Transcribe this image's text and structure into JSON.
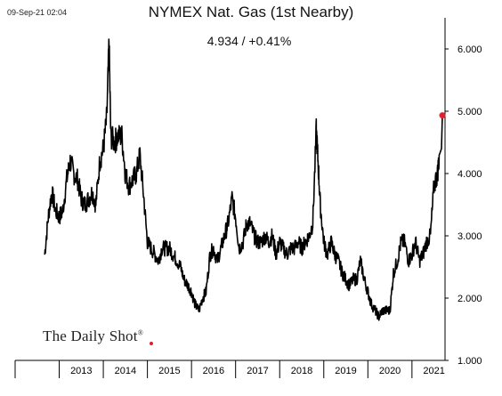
{
  "header": {
    "timestamp": "09-Sep-21 02:04",
    "title": "NYMEX Nat. Gas (1st Nearby)",
    "last_value_text": "4.934  /  +0.41%"
  },
  "branding": {
    "name": "The Daily Shot",
    "mark": "®"
  },
  "colors": {
    "line": "#000000",
    "marker": "#e0202c",
    "axis": "#000000",
    "background": "#ffffff"
  },
  "chart_data": {
    "type": "line",
    "title": "NYMEX Nat. Gas (1st Nearby)",
    "xlabel": "",
    "ylabel": "",
    "x_unit": "year (decimal)",
    "xlim": [
      2012.0,
      2021.75
    ],
    "ylim": [
      1.0,
      6.5
    ],
    "y_axis_side": "right",
    "grid": false,
    "yticks": [
      "1.000",
      "2.000",
      "3.000",
      "4.000",
      "5.000",
      "6.000"
    ],
    "ytick_values": [
      1,
      2,
      3,
      4,
      5,
      6
    ],
    "year_labels": [
      "2013",
      "2014",
      "2015",
      "2016",
      "2017",
      "2018",
      "2019",
      "2020",
      "2021"
    ],
    "last_point": {
      "x": 2021.69,
      "y": 4.934,
      "change_pct": 0.41
    },
    "series": [
      {
        "x": [
          2012.67,
          2012.75,
          2012.83,
          2012.92,
          2013.0,
          2013.08,
          2013.17,
          2013.25,
          2013.33,
          2013.42,
          2013.5,
          2013.58,
          2013.67,
          2013.75,
          2013.83,
          2013.92,
          2014.0,
          2014.08,
          2014.13,
          2014.17,
          2014.25,
          2014.33,
          2014.42,
          2014.5,
          2014.58,
          2014.67,
          2014.75,
          2014.83,
          2014.92,
          2015.0,
          2015.08,
          2015.17,
          2015.25,
          2015.33,
          2015.42,
          2015.5,
          2015.58,
          2015.67,
          2015.75,
          2015.83,
          2015.92,
          2016.0,
          2016.08,
          2016.17,
          2016.25,
          2016.33,
          2016.42,
          2016.5,
          2016.58,
          2016.67,
          2016.75,
          2016.83,
          2016.92,
          2017.0,
          2017.08,
          2017.17,
          2017.25,
          2017.33,
          2017.42,
          2017.5,
          2017.58,
          2017.67,
          2017.75,
          2017.83,
          2017.92,
          2018.0,
          2018.08,
          2018.17,
          2018.25,
          2018.33,
          2018.42,
          2018.5,
          2018.58,
          2018.67,
          2018.75,
          2018.83,
          2018.87,
          2018.92,
          2019.0,
          2019.08,
          2019.17,
          2019.25,
          2019.33,
          2019.42,
          2019.5,
          2019.58,
          2019.67,
          2019.75,
          2019.83,
          2019.92,
          2020.0,
          2020.08,
          2020.17,
          2020.25,
          2020.33,
          2020.42,
          2020.5,
          2020.58,
          2020.67,
          2020.75,
          2020.83,
          2020.92,
          2021.0,
          2021.08,
          2021.17,
          2021.25,
          2021.33,
          2021.42,
          2021.5,
          2021.58,
          2021.62,
          2021.67,
          2021.69
        ],
        "values": [
          2.7,
          3.3,
          3.7,
          3.4,
          3.3,
          3.4,
          3.9,
          4.2,
          4.0,
          3.9,
          3.6,
          3.5,
          3.6,
          3.7,
          3.5,
          4.2,
          4.4,
          4.9,
          6.1,
          4.6,
          4.5,
          4.6,
          4.6,
          4.0,
          3.8,
          3.9,
          4.0,
          4.3,
          3.6,
          2.9,
          2.8,
          2.7,
          2.6,
          2.8,
          2.8,
          2.8,
          2.7,
          2.6,
          2.5,
          2.3,
          2.2,
          2.1,
          1.9,
          1.8,
          2.0,
          2.1,
          2.7,
          2.8,
          2.6,
          2.8,
          3.0,
          3.2,
          3.6,
          3.3,
          2.8,
          2.9,
          3.2,
          3.2,
          3.0,
          2.9,
          2.9,
          3.0,
          2.9,
          3.0,
          2.7,
          2.9,
          2.8,
          2.7,
          2.8,
          2.8,
          2.9,
          2.8,
          2.9,
          3.0,
          3.2,
          4.7,
          4.2,
          3.5,
          2.9,
          2.7,
          2.9,
          2.7,
          2.6,
          2.4,
          2.3,
          2.2,
          2.3,
          2.3,
          2.6,
          2.3,
          2.1,
          1.9,
          1.8,
          1.7,
          1.8,
          1.8,
          1.8,
          2.4,
          2.6,
          2.9,
          2.9,
          2.6,
          2.7,
          2.9,
          2.6,
          2.7,
          2.9,
          3.0,
          3.8,
          4.0,
          4.3,
          4.4,
          4.934
        ]
      }
    ]
  }
}
